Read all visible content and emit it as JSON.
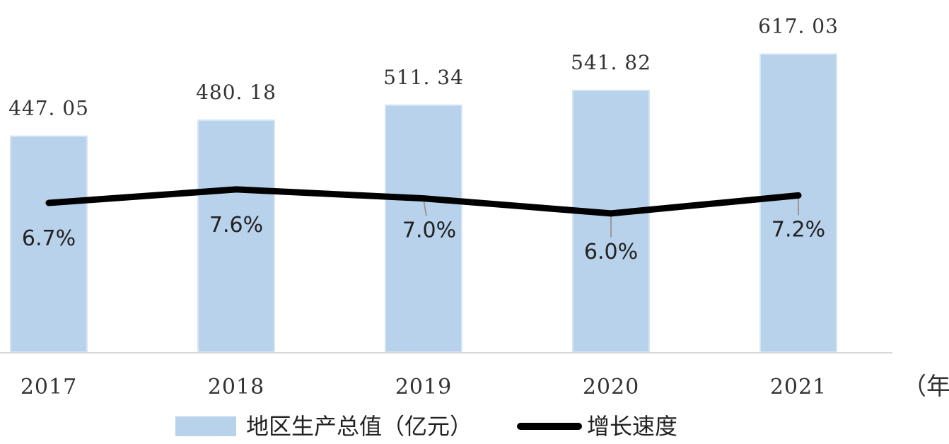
{
  "chart_data": {
    "type": "bar",
    "categories": [
      "2017",
      "2018",
      "2019",
      "2020",
      "2021"
    ],
    "x_unit_label": "（年",
    "series": [
      {
        "name": "地区生产总值（亿元）",
        "kind": "bar",
        "color": "#b8d2ec",
        "values": [
          447.05,
          480.18,
          511.34,
          541.82,
          617.03
        ],
        "labels": [
          "447. 05",
          "480. 18",
          "511. 34",
          "541. 82",
          "617. 03"
        ]
      },
      {
        "name": "增长速度",
        "kind": "line",
        "color": "#000000",
        "values": [
          6.7,
          7.6,
          7.0,
          6.0,
          7.2
        ],
        "labels": [
          "6.7%",
          "7.6%",
          "7.0%",
          "6.0%",
          "7.2%"
        ]
      }
    ],
    "grid": false,
    "legend_position": "bottom"
  }
}
